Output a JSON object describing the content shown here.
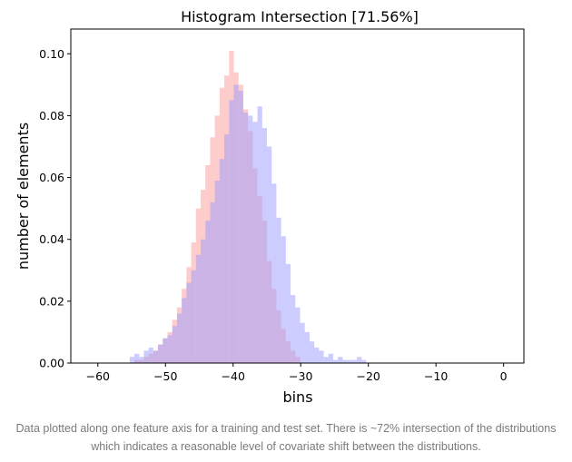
{
  "chart_data": {
    "type": "bar",
    "title": "Histogram Intersection [71.56%]",
    "xlabel": "bins",
    "ylabel": "number of elements",
    "xlim": [
      -64,
      3
    ],
    "ylim": [
      0,
      0.108
    ],
    "xticks": [
      -60,
      -50,
      -40,
      -30,
      -20,
      -10,
      0
    ],
    "yticks": [
      0.0,
      0.02,
      0.04,
      0.06,
      0.08,
      0.1
    ],
    "ytick_labels": [
      "0.00",
      "0.02",
      "0.04",
      "0.06",
      "0.08",
      "0.10"
    ],
    "xtick_labels": [
      "−60",
      "−50",
      "−40",
      "−30",
      "−20",
      "−10",
      "0"
    ],
    "grid": false,
    "bin_width": 0.7,
    "series": [
      {
        "color": "#ff9999",
        "opacity": 0.5,
        "x": [
          -54.6,
          -53.9,
          -53.2,
          -52.5,
          -51.8,
          -51.1,
          -50.4,
          -49.7,
          -49.0,
          -48.3,
          -47.6,
          -46.9,
          -46.2,
          -45.5,
          -44.8,
          -44.1,
          -43.4,
          -42.7,
          -42.0,
          -41.3,
          -40.6,
          -39.9,
          -39.2,
          -38.5,
          -37.8,
          -37.1,
          -36.4,
          -35.7,
          -35.0,
          -34.3,
          -33.6,
          -32.9,
          -32.2,
          -31.5,
          -30.8
        ],
        "values": [
          0.001,
          0.001,
          0.002,
          0.003,
          0.004,
          0.006,
          0.008,
          0.01,
          0.014,
          0.018,
          0.024,
          0.031,
          0.039,
          0.05,
          0.056,
          0.064,
          0.073,
          0.08,
          0.089,
          0.093,
          0.101,
          0.094,
          0.09,
          0.082,
          0.075,
          0.063,
          0.054,
          0.046,
          0.033,
          0.024,
          0.017,
          0.011,
          0.007,
          0.004,
          0.002
        ]
      },
      {
        "color": "#9999ff",
        "opacity": 0.5,
        "x": [
          -55.3,
          -54.6,
          -53.9,
          -53.2,
          -52.5,
          -51.8,
          -51.1,
          -50.4,
          -49.7,
          -49.0,
          -48.3,
          -47.6,
          -46.9,
          -46.2,
          -45.5,
          -44.8,
          -44.1,
          -43.4,
          -42.7,
          -42.0,
          -41.3,
          -40.6,
          -39.9,
          -39.2,
          -38.5,
          -37.8,
          -37.1,
          -36.4,
          -35.7,
          -35.0,
          -34.3,
          -33.6,
          -32.9,
          -32.2,
          -31.5,
          -30.8,
          -30.1,
          -29.4,
          -28.7,
          -28.0,
          -27.3,
          -26.6,
          -25.9,
          -25.2,
          -24.5,
          -23.8,
          -23.1,
          -22.4,
          -21.7,
          -21.0
        ],
        "values": [
          0.002,
          0.003,
          0.002,
          0.004,
          0.005,
          0.004,
          0.006,
          0.008,
          0.009,
          0.012,
          0.016,
          0.021,
          0.026,
          0.03,
          0.035,
          0.04,
          0.046,
          0.052,
          0.059,
          0.066,
          0.074,
          0.085,
          0.09,
          0.088,
          0.081,
          0.08,
          0.078,
          0.083,
          0.076,
          0.07,
          0.058,
          0.047,
          0.041,
          0.032,
          0.022,
          0.018,
          0.013,
          0.01,
          0.007,
          0.005,
          0.004,
          0.002,
          0.003,
          0.001,
          0.002,
          0.001,
          0.001,
          0.001,
          0.002,
          0.001
        ]
      }
    ]
  },
  "caption": "Data plotted along one feature axis for a training and test set. There is ~72% intersection of the distributions which indicates a reasonable level of covariate shift between the distributions."
}
